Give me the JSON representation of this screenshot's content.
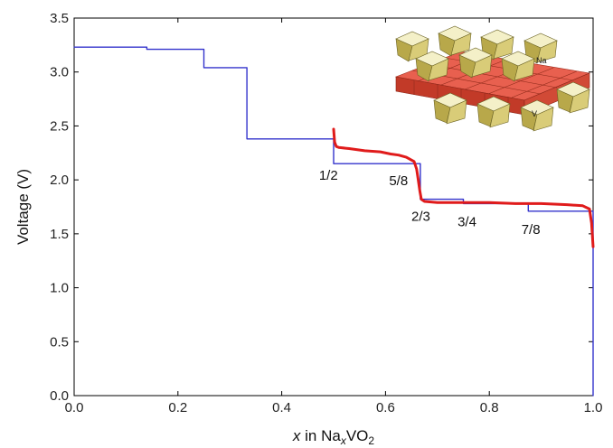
{
  "chart_data": {
    "type": "line",
    "xlabel_parts": {
      "var": "x",
      "mid": " in Na",
      "sub1": "x",
      "mid2": "VO",
      "sub2": "2"
    },
    "ylabel": "Voltage (V)",
    "xlim": [
      0.0,
      1.0
    ],
    "ylim": [
      0.0,
      3.5
    ],
    "xticks": [
      "0.0",
      "0.2",
      "0.4",
      "0.6",
      "0.8",
      "1.0"
    ],
    "yticks": [
      "0.0",
      "0.5",
      "1.0",
      "1.5",
      "2.0",
      "2.5",
      "3.0",
      "3.5"
    ],
    "grid": false,
    "legend": "none",
    "series": [
      {
        "color": "#3333cc",
        "style": "step",
        "x": [
          0.0,
          0.14,
          0.14,
          0.25,
          0.25,
          0.333,
          0.333,
          0.5,
          0.5,
          0.667,
          0.667,
          0.75,
          0.75,
          0.875,
          0.875,
          1.0,
          1.0
        ],
        "y": [
          3.23,
          3.23,
          3.21,
          3.21,
          3.04,
          3.04,
          2.38,
          2.38,
          2.15,
          2.15,
          1.82,
          1.82,
          1.78,
          1.78,
          1.71,
          1.71,
          0.0
        ]
      },
      {
        "color": "#e01b1b",
        "style": "line",
        "x": [
          0.5,
          0.502,
          0.505,
          0.51,
          0.53,
          0.56,
          0.59,
          0.61,
          0.625,
          0.64,
          0.655,
          0.66,
          0.663,
          0.666,
          0.669,
          0.675,
          0.7,
          0.75,
          0.8,
          0.85,
          0.9,
          0.95,
          0.98,
          0.993,
          0.997,
          1.0
        ],
        "y": [
          2.47,
          2.35,
          2.31,
          2.3,
          2.29,
          2.27,
          2.26,
          2.24,
          2.23,
          2.21,
          2.17,
          2.1,
          2.0,
          1.9,
          1.82,
          1.8,
          1.79,
          1.79,
          1.79,
          1.78,
          1.78,
          1.77,
          1.76,
          1.73,
          1.6,
          1.38
        ]
      }
    ],
    "annotations": [
      {
        "text": "1/2",
        "x": 0.49,
        "y": 2.0
      },
      {
        "text": "5/8",
        "x": 0.625,
        "y": 1.95
      },
      {
        "text": "2/3",
        "x": 0.668,
        "y": 1.62
      },
      {
        "text": "3/4",
        "x": 0.757,
        "y": 1.57
      },
      {
        "text": "7/8",
        "x": 0.88,
        "y": 1.5
      }
    ],
    "inset_labels": {
      "na": "Na",
      "v": "V"
    }
  }
}
